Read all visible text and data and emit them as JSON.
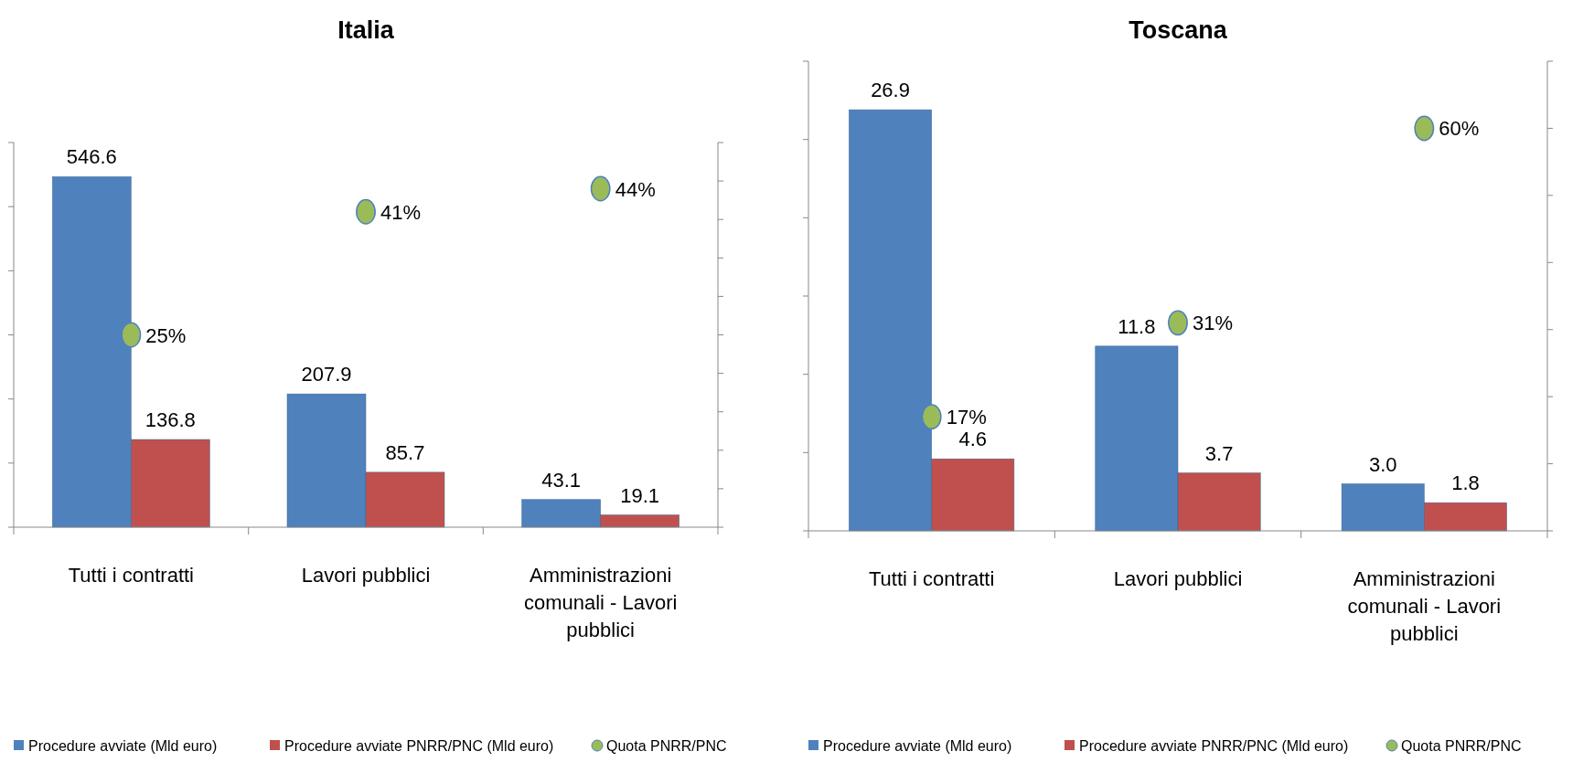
{
  "chart_data": [
    {
      "type": "bar",
      "title": "Italia",
      "categories": [
        "Tutti i contratti",
        "Lavori pubblici",
        "Amministrazioni comunali - Lavori pubblici"
      ],
      "series": [
        {
          "name": "Procedure avviate (Mld euro)",
          "color": "#4f81bd",
          "values": [
            546.6,
            207.9,
            43.1
          ],
          "value_labels": [
            "546.6",
            "207.9",
            "43.1"
          ]
        },
        {
          "name": "Procedure avviate PNRR/PNC (Mld euro)",
          "color": "#c0504d",
          "values": [
            136.8,
            85.7,
            19.1
          ],
          "value_labels": [
            "136.8",
            "85.7",
            "19.1"
          ]
        },
        {
          "name": "Quota PNRR/PNC",
          "type": "scatter",
          "axis": "y2",
          "color": "#9bbb59",
          "values": [
            25,
            41,
            44
          ],
          "value_labels": [
            "25%",
            "41%",
            "44%"
          ]
        }
      ],
      "ylim": [
        0,
        600
      ],
      "yticks": [
        {
          "value": 0,
          "label": null
        },
        {
          "value": 100,
          "label": null
        },
        {
          "value": 200,
          "label": null
        },
        {
          "value": 300,
          "label": null
        },
        {
          "value": 400,
          "label": null
        },
        {
          "value": 500,
          "label": null
        },
        {
          "value": 600,
          "label": null
        }
      ],
      "y2lim": [
        0,
        50
      ],
      "y2ticks": [
        {
          "value": 0,
          "label": null
        },
        {
          "value": 5,
          "label": null
        },
        {
          "value": 10,
          "label": null
        },
        {
          "value": 15,
          "label": null
        },
        {
          "value": 20,
          "label": null
        },
        {
          "value": 25,
          "label": null
        },
        {
          "value": 30,
          "label": null
        },
        {
          "value": 35,
          "label": null
        },
        {
          "value": 40,
          "label": null
        },
        {
          "value": 45,
          "label": null
        },
        {
          "value": 50,
          "label": null
        }
      ],
      "tick_labels": "x",
      "marker": "circle",
      "grid": false,
      "legend": "bottom"
    },
    {
      "type": "bar",
      "title": "Toscana",
      "categories": [
        "Tutti i contratti",
        "Lavori pubblici",
        "Amministrazioni comunali - Lavori pubblici"
      ],
      "series": [
        {
          "name": "Procedure avviate (Mld euro)",
          "color": "#4f81bd",
          "values": [
            26.9,
            11.8,
            3.0
          ],
          "value_labels": [
            "26.9",
            "11.8",
            "3.0"
          ]
        },
        {
          "name": "Procedure avviate PNRR/PNC (Mld euro)",
          "color": "#c0504d",
          "values": [
            4.6,
            3.7,
            1.8
          ],
          "value_labels": [
            "4.6",
            "3.7",
            "1.8"
          ]
        },
        {
          "name": "Quota PNRR/PNC",
          "type": "scatter",
          "axis": "y2",
          "color": "#9bbb59",
          "values": [
            17,
            31,
            60
          ],
          "value_labels": [
            "17%",
            "31%",
            "60%"
          ]
        }
      ],
      "ylim": [
        0,
        30
      ],
      "yticks": [
        {
          "value": 0,
          "label": null
        },
        {
          "value": 5,
          "label": null
        },
        {
          "value": 10,
          "label": null
        },
        {
          "value": 15,
          "label": null
        },
        {
          "value": 20,
          "label": null
        },
        {
          "value": 25,
          "label": null
        },
        {
          "value": 30,
          "label": null
        }
      ],
      "y2lim": [
        0,
        70
      ],
      "y2ticks": [
        {
          "value": 0,
          "label": null
        },
        {
          "value": 10,
          "label": null
        },
        {
          "value": 20,
          "label": null
        },
        {
          "value": 30,
          "label": null
        },
        {
          "value": 40,
          "label": null
        },
        {
          "value": 50,
          "label": null
        },
        {
          "value": 60,
          "label": null
        },
        {
          "value": 70,
          "label": null
        }
      ],
      "tick_labels": "x",
      "marker": "circle",
      "grid": false,
      "legend": "bottom"
    }
  ]
}
